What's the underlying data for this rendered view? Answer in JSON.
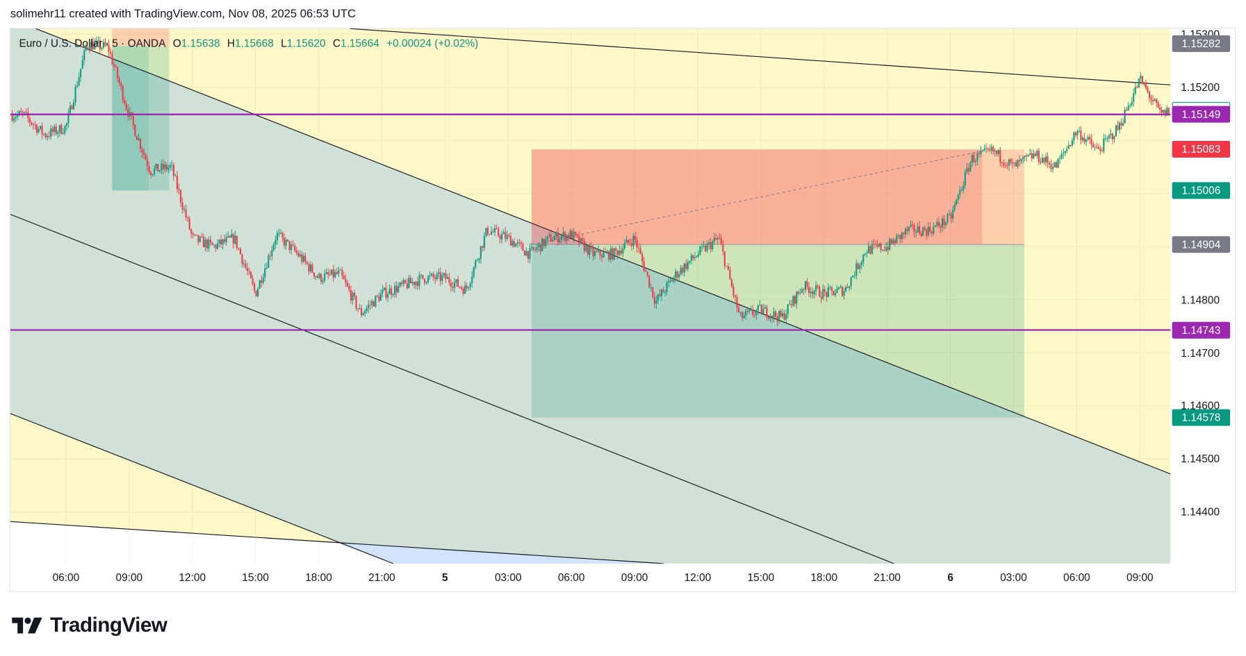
{
  "header": {
    "caption": "solimehr11 created with TradingView.com, Nov 08, 2025 06:53 UTC"
  },
  "legend": {
    "symbol": "Euro / U.S. Dollar · 5 · OANDA",
    "open_label": "O",
    "open": "1.15638",
    "high_label": "H",
    "high": "1.15668",
    "low_label": "L",
    "low": "1.15620",
    "close_label": "C",
    "close": "1.15664",
    "change": "+0.00024 (+0.02%)"
  },
  "colors": {
    "up": "#089981",
    "down": "#f23645",
    "level_line": "#9c27b0",
    "background_zone": "#fff8c9",
    "channel_zone": "#d2e1d6",
    "blue_zone": "#d3e3fd",
    "grey_badge": "#787b86"
  },
  "time_axis": [
    "06:00",
    "09:00",
    "12:00",
    "15:00",
    "18:00",
    "21:00",
    "5",
    "03:00",
    "06:00",
    "09:00",
    "12:00",
    "15:00",
    "18:00",
    "21:00",
    "6",
    "03:00",
    "06:00",
    "09:00"
  ],
  "price_axis": [
    "1.15300",
    "1.15200",
    "1.14800",
    "1.14700",
    "1.14600",
    "1.14500",
    "1.14400"
  ],
  "price_badges": [
    {
      "value": "1.15282",
      "style": "grey"
    },
    {
      "value": "1.15156",
      "style": "current"
    },
    {
      "value": "1.15149",
      "style": "purple"
    },
    {
      "value": "1.15083",
      "style": "red"
    },
    {
      "value": "1.15006",
      "style": "green"
    },
    {
      "value": "1.14904",
      "style": "grey"
    },
    {
      "value": "1.14743",
      "style": "purple"
    },
    {
      "value": "1.14578",
      "style": "green"
    }
  ],
  "chart_data": {
    "type": "candlestick",
    "symbol": "EURUSD",
    "interval": "5 minutes",
    "ylim": [
      1.1433,
      1.1531
    ],
    "horizontal_levels": [
      1.15149,
      1.14743
    ],
    "short_position": {
      "entry": 1.14904,
      "stop": 1.15083,
      "target": 1.14578
    },
    "approx_hourly_closes": [
      [
        "2025-11-04 04:00",
        1.15148
      ],
      [
        "2025-11-04 05:00",
        1.1511
      ],
      [
        "2025-11-04 06:00",
        1.15125
      ],
      [
        "2025-11-04 07:00",
        1.15282
      ],
      [
        "2025-11-04 08:00",
        1.15275
      ],
      [
        "2025-11-04 09:00",
        1.15148
      ],
      [
        "2025-11-04 10:00",
        1.15043
      ],
      [
        "2025-11-04 11:00",
        1.1505
      ],
      [
        "2025-11-04 12:00",
        1.14916
      ],
      [
        "2025-11-04 13:00",
        1.149
      ],
      [
        "2025-11-04 14:00",
        1.14916
      ],
      [
        "2025-11-04 15:00",
        1.14811
      ],
      [
        "2025-11-04 16:00",
        1.14923
      ],
      [
        "2025-11-04 17:00",
        1.14886
      ],
      [
        "2025-11-04 18:00",
        1.14841
      ],
      [
        "2025-11-04 19:00",
        1.14849
      ],
      [
        "2025-11-04 20:00",
        1.14774
      ],
      [
        "2025-11-04 21:00",
        1.14811
      ],
      [
        "2025-11-04 22:00",
        1.14826
      ],
      [
        "2025-11-04 23:00",
        1.14841
      ],
      [
        "2025-11-05 00:00",
        1.14841
      ],
      [
        "2025-11-05 01:00",
        1.14819
      ],
      [
        "2025-11-05 02:00",
        1.14931
      ],
      [
        "2025-11-05 03:00",
        1.14916
      ],
      [
        "2025-11-05 04:00",
        1.14886
      ],
      [
        "2025-11-05 05:00",
        1.14916
      ],
      [
        "2025-11-05 06:00",
        1.14923
      ],
      [
        "2025-11-05 07:00",
        1.14886
      ],
      [
        "2025-11-05 08:00",
        1.14886
      ],
      [
        "2025-11-05 09:00",
        1.14916
      ],
      [
        "2025-11-05 10:00",
        1.14796
      ],
      [
        "2025-11-05 11:00",
        1.14849
      ],
      [
        "2025-11-05 12:00",
        1.14886
      ],
      [
        "2025-11-05 13:00",
        1.14916
      ],
      [
        "2025-11-05 14:00",
        1.14766
      ],
      [
        "2025-11-05 15:00",
        1.14781
      ],
      [
        "2025-11-05 16:00",
        1.14766
      ],
      [
        "2025-11-05 17:00",
        1.14826
      ],
      [
        "2025-11-05 18:00",
        1.14811
      ],
      [
        "2025-11-05 19:00",
        1.14819
      ],
      [
        "2025-11-05 20:00",
        1.14894
      ],
      [
        "2025-11-05 21:00",
        1.149
      ],
      [
        "2025-11-05 22:00",
        1.14931
      ],
      [
        "2025-11-05 23:00",
        1.14931
      ],
      [
        "2025-11-06 00:00",
        1.14953
      ],
      [
        "2025-11-06 01:00",
        1.15065
      ],
      [
        "2025-11-06 02:00",
        1.1508
      ],
      [
        "2025-11-06 03:00",
        1.1505
      ],
      [
        "2025-11-06 04:00",
        1.15073
      ],
      [
        "2025-11-06 05:00",
        1.1505
      ],
      [
        "2025-11-06 06:00",
        1.15118
      ],
      [
        "2025-11-06 07:00",
        1.1508
      ],
      [
        "2025-11-06 08:00",
        1.15125
      ],
      [
        "2025-11-06 09:00",
        1.15215
      ],
      [
        "2025-11-06 10:00",
        1.15148
      ],
      [
        "2025-11-06 10:25",
        1.15156
      ]
    ]
  },
  "branding": {
    "logo_text": "TradingView"
  }
}
